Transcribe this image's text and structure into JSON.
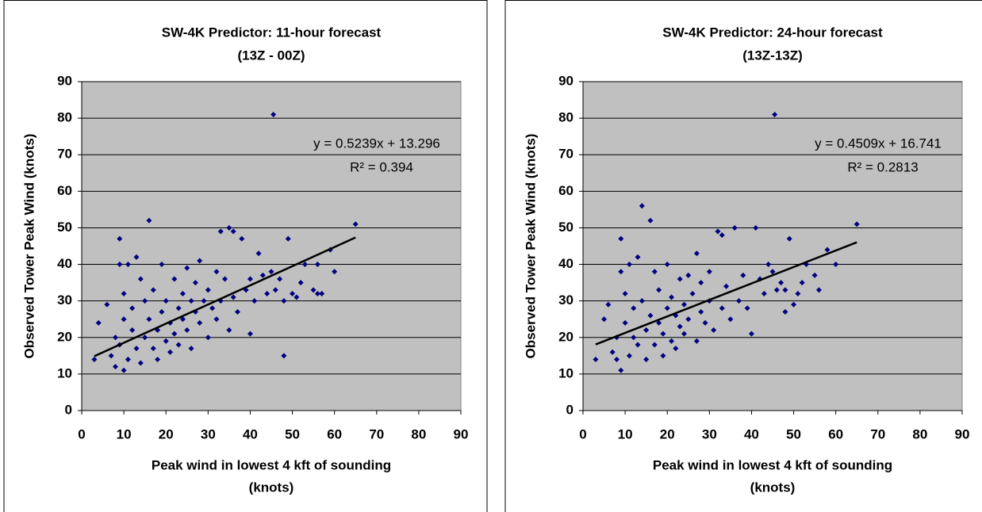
{
  "chart_data": [
    {
      "type": "scatter",
      "title": [
        "SW-4K Predictor: 11-hour forecast",
        "(13Z - 00Z)"
      ],
      "x_label": [
        "Peak wind in lowest 4 kft of sounding",
        "(knots)"
      ],
      "y_label": "Observed Tower Peak Wind (knots)",
      "annotations": [
        "y = 0.5239x + 13.296",
        "R² = 0.394"
      ],
      "color": "#000080",
      "x": [
        3,
        4,
        6,
        7,
        8,
        8,
        9,
        9,
        9,
        10,
        10,
        10,
        11,
        11,
        12,
        12,
        13,
        13,
        14,
        14,
        15,
        15,
        16,
        16,
        17,
        17,
        18,
        18,
        19,
        19,
        20,
        20,
        21,
        21,
        22,
        22,
        23,
        23,
        24,
        24,
        25,
        25,
        26,
        26,
        27,
        27,
        28,
        28,
        29,
        30,
        30,
        31,
        32,
        32,
        33,
        33,
        34,
        35,
        35,
        36,
        36,
        37,
        38,
        39,
        40,
        40,
        41,
        42,
        43,
        44,
        45,
        45.5,
        46,
        47,
        48,
        48,
        49,
        50,
        51,
        52,
        53,
        55,
        56,
        56,
        57,
        59,
        60,
        65
      ],
      "values": [
        14,
        24,
        29,
        15,
        12,
        20,
        47,
        40,
        18,
        11,
        25,
        32,
        40,
        14,
        28,
        22,
        42,
        17,
        36,
        13,
        30,
        20,
        52,
        25,
        17,
        33,
        22,
        14,
        40,
        27,
        19,
        30,
        24,
        16,
        36,
        21,
        28,
        18,
        32,
        25,
        39,
        22,
        30,
        17,
        27,
        35,
        24,
        41,
        30,
        20,
        33,
        28,
        38,
        25,
        49,
        30,
        36,
        22,
        50,
        31,
        49,
        27,
        47,
        33,
        21,
        36,
        30,
        43,
        37,
        32,
        38,
        81,
        33,
        36,
        15,
        30,
        47,
        32,
        31,
        35,
        40,
        33,
        40,
        32,
        32,
        44,
        38,
        51
      ],
      "trendline": {
        "x": [
          3,
          65
        ],
        "values": [
          14.87,
          47.35
        ],
        "color": "#000000"
      },
      "xlim": [
        0,
        90
      ],
      "ylim": [
        0,
        90
      ],
      "xticks": [
        0,
        10,
        20,
        30,
        40,
        50,
        60,
        70,
        80,
        90
      ],
      "yticks": [
        0,
        10,
        20,
        30,
        40,
        50,
        60,
        70,
        80,
        90
      ],
      "grid": true,
      "background": "#c0c0c0"
    },
    {
      "type": "scatter",
      "title": [
        "SW-4K Predictor: 24-hour forecast",
        "(13Z-13Z)"
      ],
      "x_label": [
        "Peak wind in lowest 4 kft of sounding",
        "(knots)"
      ],
      "y_label": "Observed Tower Peak Wind (knots)",
      "annotations": [
        "y = 0.4509x + 16.741",
        "R² = 0.2813"
      ],
      "color": "#000080",
      "x": [
        3,
        5,
        6,
        7,
        8,
        8,
        9,
        9,
        9,
        10,
        10,
        11,
        11,
        12,
        12,
        13,
        13,
        14,
        14,
        15,
        15,
        16,
        16,
        17,
        17,
        18,
        18,
        19,
        19,
        20,
        20,
        21,
        21,
        22,
        22,
        23,
        23,
        24,
        24,
        25,
        25,
        26,
        27,
        27,
        28,
        28,
        29,
        30,
        30,
        31,
        32,
        33,
        33,
        34,
        35,
        36,
        37,
        38,
        39,
        40,
        41,
        42,
        43,
        44,
        45,
        45.5,
        46,
        47,
        48,
        48,
        49,
        50,
        51,
        52,
        53,
        55,
        56,
        58,
        60,
        65
      ],
      "values": [
        14,
        25,
        29,
        16,
        20,
        14,
        47,
        38,
        11,
        24,
        32,
        40,
        15,
        28,
        20,
        42,
        18,
        56,
        30,
        22,
        14,
        52,
        26,
        38,
        18,
        24,
        33,
        21,
        15,
        40,
        28,
        19,
        31,
        26,
        17,
        36,
        23,
        29,
        21,
        37,
        25,
        32,
        43,
        19,
        27,
        35,
        24,
        30,
        38,
        22,
        49,
        28,
        48,
        34,
        25,
        50,
        30,
        37,
        28,
        21,
        50,
        36,
        32,
        40,
        38,
        81,
        33,
        35,
        27,
        33,
        47,
        29,
        32,
        35,
        40,
        37,
        33,
        44,
        40,
        51
      ],
      "trendline": {
        "x": [
          3,
          65
        ],
        "values": [
          18.09,
          46.05
        ],
        "color": "#000000"
      },
      "xlim": [
        0,
        90
      ],
      "ylim": [
        0,
        90
      ],
      "xticks": [
        0,
        10,
        20,
        30,
        40,
        50,
        60,
        70,
        80,
        90
      ],
      "yticks": [
        0,
        10,
        20,
        30,
        40,
        50,
        60,
        70,
        80,
        90
      ],
      "grid": true,
      "background": "#c0c0c0"
    }
  ]
}
